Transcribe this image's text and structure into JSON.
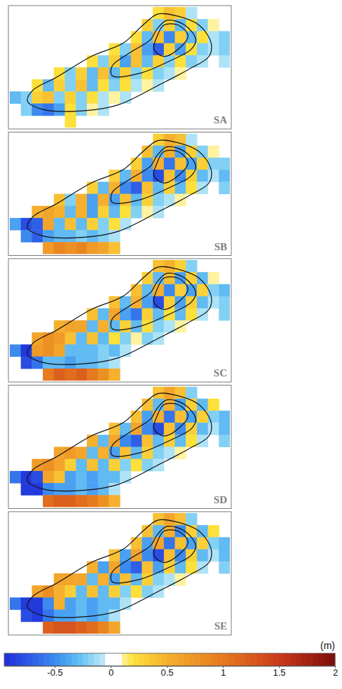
{
  "chart_data": [
    {
      "type": "heatmap",
      "title": "SA",
      "tick_labels": false,
      "xlim": [
        0,
        20
      ],
      "ylim": [
        10,
        0
      ],
      "cells": [
        [
          null,
          null,
          null,
          null,
          null,
          null,
          null,
          null,
          null,
          null,
          null,
          null,
          null,
          0.2,
          0.4,
          0.3,
          -0.1,
          null,
          null,
          null
        ],
        [
          null,
          null,
          null,
          null,
          null,
          null,
          null,
          null,
          null,
          null,
          null,
          null,
          0.3,
          -0.2,
          0.3,
          -0.3,
          0.2,
          -0.2,
          0.1,
          null
        ],
        [
          null,
          null,
          null,
          null,
          null,
          null,
          null,
          null,
          null,
          null,
          null,
          0.2,
          -0.3,
          0.4,
          -0.5,
          0.3,
          -0.3,
          0.2,
          -0.1,
          -0.2
        ],
        [
          null,
          null,
          null,
          null,
          null,
          null,
          null,
          null,
          null,
          0.2,
          -0.2,
          0.4,
          -0.4,
          -0.7,
          0.3,
          -0.4,
          0.2,
          -0.2,
          -0.1,
          -0.2
        ],
        [
          null,
          null,
          null,
          null,
          null,
          null,
          null,
          0.2,
          -0.2,
          0.3,
          -0.4,
          0.4,
          -0.3,
          0.3,
          -0.2,
          0.2,
          -0.2,
          -0.1,
          null,
          -0.1
        ],
        [
          null,
          null,
          null,
          null,
          0.2,
          -0.2,
          0.3,
          -0.3,
          0.4,
          -0.3,
          0.3,
          -0.2,
          0.2,
          -0.2,
          -0.1,
          0.1,
          null,
          null,
          null,
          null
        ],
        [
          null,
          null,
          0.2,
          -0.3,
          0.3,
          -0.2,
          0.4,
          -0.3,
          0.2,
          -0.2,
          0.2,
          -0.1,
          0.1,
          -0.1,
          null,
          null,
          null,
          null,
          null,
          null
        ],
        [
          -0.3,
          -0.2,
          0.3,
          0.4,
          -0.2,
          0.3,
          -0.2,
          0.2,
          -0.1,
          0.1,
          -0.1,
          null,
          null,
          null,
          null,
          null,
          null,
          null,
          null,
          null
        ],
        [
          null,
          -0.2,
          -0.5,
          -0.6,
          -0.4,
          0.2,
          -0.2,
          0.1,
          -0.1,
          null,
          null,
          null,
          null,
          null,
          null,
          null,
          null,
          null,
          null,
          null
        ],
        [
          null,
          null,
          null,
          null,
          null,
          0.2,
          null,
          null,
          null,
          null,
          null,
          null,
          null,
          null,
          null,
          null,
          null,
          null,
          null,
          null
        ]
      ]
    },
    {
      "type": "heatmap",
      "title": "SB",
      "tick_labels": false,
      "xlim": [
        0,
        20
      ],
      "ylim": [
        10,
        0
      ],
      "cells": [
        [
          null,
          null,
          null,
          null,
          null,
          null,
          null,
          null,
          null,
          null,
          null,
          null,
          null,
          0.3,
          0.5,
          0.4,
          -0.1,
          null,
          null,
          null
        ],
        [
          null,
          null,
          null,
          null,
          null,
          null,
          null,
          null,
          null,
          null,
          null,
          null,
          0.4,
          -0.3,
          0.5,
          -0.4,
          0.3,
          -0.2,
          0.1,
          null
        ],
        [
          null,
          null,
          null,
          null,
          null,
          null,
          null,
          null,
          null,
          null,
          null,
          0.3,
          -0.4,
          0.5,
          -0.6,
          0.4,
          -0.4,
          0.3,
          -0.2,
          -0.2
        ],
        [
          null,
          null,
          null,
          null,
          null,
          null,
          null,
          null,
          null,
          0.3,
          -0.3,
          0.5,
          -0.5,
          -0.8,
          0.4,
          -0.5,
          0.3,
          -0.3,
          -0.1,
          -0.3
        ],
        [
          null,
          null,
          null,
          null,
          null,
          null,
          null,
          0.3,
          -0.3,
          0.5,
          -0.5,
          -0.7,
          0.4,
          -0.3,
          0.3,
          -0.3,
          0.2,
          -0.1,
          null,
          -0.2
        ],
        [
          null,
          null,
          null,
          null,
          0.4,
          -0.2,
          0.5,
          -0.4,
          0.5,
          -0.4,
          0.4,
          -0.3,
          0.3,
          -0.2,
          -0.1,
          0.1,
          null,
          null,
          null,
          null
        ],
        [
          null,
          null,
          0.5,
          0.6,
          0.5,
          -0.3,
          0.5,
          -0.4,
          0.3,
          -0.3,
          0.2,
          -0.2,
          0.1,
          -0.1,
          null,
          null,
          null,
          null,
          null,
          null
        ],
        [
          -0.4,
          -0.8,
          -0.7,
          0.6,
          -0.3,
          0.4,
          -0.3,
          0.3,
          -0.2,
          0.2,
          -0.1,
          null,
          null,
          null,
          null,
          null,
          null,
          null,
          null,
          null
        ],
        [
          null,
          -0.5,
          -0.7,
          -0.4,
          -0.3,
          -0.3,
          -0.2,
          -0.3,
          -0.2,
          -0.1,
          null,
          null,
          null,
          null,
          null,
          null,
          null,
          null,
          null,
          null
        ],
        [
          null,
          null,
          null,
          0.7,
          0.9,
          0.8,
          0.9,
          0.7,
          0.6,
          0.4,
          null,
          null,
          null,
          null,
          null,
          null,
          null,
          null,
          null,
          null
        ]
      ]
    },
    {
      "type": "heatmap",
      "title": "SC",
      "tick_labels": false,
      "xlim": [
        0,
        20
      ],
      "ylim": [
        10,
        0
      ],
      "cells": [
        [
          null,
          null,
          null,
          null,
          null,
          null,
          null,
          null,
          null,
          null,
          null,
          null,
          null,
          0.4,
          0.5,
          0.3,
          -0.2,
          null,
          null,
          null
        ],
        [
          null,
          null,
          null,
          null,
          null,
          null,
          null,
          null,
          null,
          null,
          null,
          null,
          0.3,
          -0.3,
          0.4,
          -0.4,
          0.3,
          -0.3,
          0.1,
          null
        ],
        [
          null,
          null,
          null,
          null,
          null,
          null,
          null,
          null,
          null,
          null,
          null,
          0.4,
          -0.3,
          0.5,
          -0.5,
          0.3,
          -0.4,
          0.3,
          -0.2,
          -0.3
        ],
        [
          null,
          null,
          null,
          null,
          null,
          null,
          null,
          null,
          null,
          0.4,
          -0.3,
          0.5,
          -0.4,
          -0.8,
          0.3,
          -0.4,
          0.3,
          -0.3,
          -0.1,
          -0.2
        ],
        [
          null,
          null,
          null,
          null,
          null,
          null,
          null,
          0.4,
          -0.3,
          0.6,
          -0.4,
          -0.6,
          0.3,
          -0.3,
          0.2,
          -0.3,
          0.2,
          -0.1,
          null,
          -0.2
        ],
        [
          null,
          null,
          null,
          null,
          0.5,
          0.6,
          0.6,
          -0.3,
          0.5,
          -0.3,
          0.3,
          -0.3,
          0.2,
          -0.2,
          -0.1,
          0.1,
          null,
          null,
          null,
          null
        ],
        [
          null,
          null,
          0.6,
          0.8,
          0.7,
          0.4,
          -0.3,
          0.4,
          -0.3,
          0.2,
          -0.2,
          0.1,
          -0.2,
          -0.1,
          null,
          null,
          null,
          null,
          null,
          null
        ],
        [
          -0.5,
          -0.9,
          0.7,
          0.8,
          0.6,
          -0.3,
          -0.3,
          -0.3,
          -0.2,
          -0.3,
          -0.1,
          null,
          null,
          null,
          null,
          null,
          null,
          null,
          null,
          null
        ],
        [
          null,
          -0.8,
          -0.6,
          -0.3,
          -0.3,
          -0.4,
          -0.3,
          -0.3,
          -0.2,
          -0.1,
          null,
          null,
          null,
          null,
          null,
          null,
          null,
          null,
          null,
          null
        ],
        [
          null,
          null,
          null,
          1.0,
          1.2,
          1.1,
          1.2,
          1.0,
          0.8,
          0.5,
          null,
          null,
          null,
          null,
          null,
          null,
          null,
          null,
          null,
          null
        ]
      ]
    },
    {
      "type": "heatmap",
      "title": "SD",
      "tick_labels": false,
      "xlim": [
        0,
        20
      ],
      "ylim": [
        10,
        0
      ],
      "cells": [
        [
          null,
          null,
          null,
          null,
          null,
          null,
          null,
          null,
          null,
          null,
          null,
          null,
          null,
          0.4,
          0.6,
          0.4,
          -0.2,
          null,
          null,
          null
        ],
        [
          null,
          null,
          null,
          null,
          null,
          null,
          null,
          null,
          null,
          null,
          null,
          null,
          0.4,
          -0.3,
          0.5,
          -0.4,
          0.3,
          -0.3,
          0.2,
          null
        ],
        [
          null,
          null,
          null,
          null,
          null,
          null,
          null,
          null,
          null,
          null,
          null,
          0.4,
          -0.4,
          0.5,
          -0.6,
          0.4,
          -0.4,
          0.3,
          -0.2,
          -0.3
        ],
        [
          null,
          null,
          null,
          null,
          null,
          null,
          null,
          null,
          null,
          0.4,
          -0.3,
          0.6,
          -0.5,
          -0.8,
          0.4,
          -0.5,
          0.3,
          -0.3,
          -0.1,
          -0.3
        ],
        [
          null,
          null,
          null,
          null,
          null,
          null,
          null,
          0.5,
          -0.3,
          0.6,
          -0.5,
          -0.7,
          0.4,
          -0.3,
          0.3,
          -0.3,
          0.2,
          -0.1,
          null,
          -0.2
        ],
        [
          null,
          null,
          null,
          null,
          0.6,
          0.7,
          0.6,
          -0.3,
          0.5,
          -0.4,
          0.4,
          -0.3,
          0.3,
          -0.2,
          -0.1,
          0.1,
          null,
          null,
          null,
          null
        ],
        [
          null,
          null,
          0.7,
          0.8,
          0.6,
          0.3,
          -0.3,
          0.4,
          -0.3,
          0.3,
          -0.2,
          0.2,
          -0.2,
          -0.1,
          null,
          null,
          null,
          null,
          null,
          null
        ],
        [
          -0.6,
          -0.9,
          -0.8,
          0.6,
          0.4,
          -0.4,
          -0.3,
          -0.4,
          -0.3,
          -0.3,
          -0.1,
          null,
          null,
          null,
          null,
          null,
          null,
          null,
          null,
          null
        ],
        [
          null,
          -0.9,
          -0.9,
          -0.5,
          -0.4,
          -0.4,
          -0.3,
          -0.4,
          -0.3,
          -0.1,
          null,
          null,
          null,
          null,
          null,
          null,
          null,
          null,
          null,
          null
        ],
        [
          null,
          null,
          null,
          1.1,
          1.2,
          1.2,
          1.1,
          1.0,
          0.8,
          0.5,
          null,
          null,
          null,
          null,
          null,
          null,
          null,
          null,
          null,
          null
        ]
      ]
    },
    {
      "type": "heatmap",
      "title": "SE",
      "tick_labels": false,
      "xlim": [
        0,
        20
      ],
      "ylim": [
        10,
        0
      ],
      "cells": [
        [
          null,
          null,
          null,
          null,
          null,
          null,
          null,
          null,
          null,
          null,
          null,
          null,
          null,
          0.4,
          0.6,
          0.4,
          -0.2,
          null,
          null,
          null
        ],
        [
          null,
          null,
          null,
          null,
          null,
          null,
          null,
          null,
          null,
          null,
          null,
          null,
          0.4,
          -0.3,
          0.5,
          -0.5,
          0.3,
          -0.3,
          0.2,
          null
        ],
        [
          null,
          null,
          null,
          null,
          null,
          null,
          null,
          null,
          null,
          null,
          null,
          0.4,
          -0.4,
          0.6,
          -0.6,
          0.4,
          -0.4,
          0.3,
          -0.2,
          -0.3
        ],
        [
          null,
          null,
          null,
          null,
          null,
          null,
          null,
          null,
          null,
          0.4,
          -0.4,
          0.6,
          -0.5,
          -0.8,
          0.4,
          -0.5,
          0.3,
          -0.3,
          -0.1,
          -0.3
        ],
        [
          null,
          null,
          null,
          null,
          null,
          null,
          null,
          0.5,
          -0.4,
          0.6,
          -0.5,
          -0.7,
          0.4,
          -0.4,
          0.3,
          -0.3,
          0.2,
          -0.1,
          null,
          -0.2
        ],
        [
          null,
          null,
          null,
          null,
          0.6,
          0.6,
          0.6,
          -0.3,
          0.5,
          -0.4,
          0.4,
          -0.3,
          0.3,
          -0.2,
          -0.1,
          0.1,
          null,
          null,
          null,
          null
        ],
        [
          null,
          null,
          0.6,
          0.8,
          0.5,
          0.3,
          -0.3,
          0.4,
          -0.3,
          0.3,
          -0.2,
          0.2,
          -0.2,
          -0.1,
          null,
          null,
          null,
          null,
          null,
          null
        ],
        [
          -0.6,
          -0.9,
          -0.9,
          -0.5,
          0.5,
          -0.4,
          -0.3,
          -0.4,
          -0.3,
          -0.3,
          -0.1,
          null,
          null,
          null,
          null,
          null,
          null,
          null,
          null,
          null
        ],
        [
          null,
          -0.8,
          -0.9,
          -0.6,
          -0.4,
          -0.4,
          -0.3,
          -0.4,
          -0.3,
          -0.1,
          null,
          null,
          null,
          null,
          null,
          null,
          null,
          null,
          null,
          null
        ],
        [
          null,
          null,
          null,
          1.2,
          1.3,
          1.3,
          1.2,
          1.1,
          0.9,
          0.6,
          null,
          null,
          null,
          null,
          null,
          null,
          null,
          null,
          null,
          null
        ]
      ]
    }
  ],
  "contours": [
    {
      "x": [
        1.6,
        3.0,
        6.8,
        9.9,
        13.7,
        16.2,
        18.1,
        18.3,
        17.2,
        15.0,
        13.4,
        12.1,
        10.3,
        7.4,
        4.3,
        2.1
      ],
      "y": [
        7.8,
        8.5,
        8.6,
        8.1,
        6.4,
        5.2,
        4.1,
        3.0,
        1.5,
        0.7,
        0.6,
        1.5,
        3.0,
        4.1,
        5.8,
        6.9
      ]
    },
    {
      "x": [
        9.3,
        11.8,
        14.7,
        16.5,
        16.9,
        15.9,
        14.3,
        13.4,
        12.8,
        10.9,
        9.3
      ],
      "y": [
        5.7,
        5.5,
        4.4,
        3.5,
        2.7,
        1.5,
        1.1,
        1.8,
        2.7,
        3.8,
        4.9
      ]
    },
    {
      "x": [
        13.4,
        14.0,
        15.3,
        16.2,
        15.3,
        14.0,
        13.1
      ],
      "y": [
        2.4,
        1.5,
        1.5,
        2.4,
        3.5,
        4.1,
        3.5
      ]
    }
  ],
  "colorbar": {
    "range": [
      -0.95,
      2
    ],
    "ticks": [
      -0.5,
      0,
      0.5,
      1,
      1.5,
      2
    ],
    "title": "(m)"
  }
}
